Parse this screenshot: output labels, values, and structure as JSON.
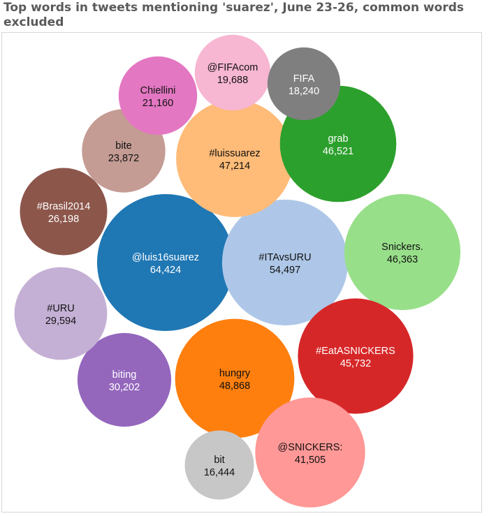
{
  "title": "Top words in tweets mentioning 'suarez', June 23-26, common words excluded",
  "chart_data": {
    "type": "bubble",
    "title": "Top words in tweets mentioning 'suarez', June 23-26, common words excluded",
    "points": [
      {
        "label": "@luis16suarez",
        "value": 64424,
        "display": "64,424",
        "color": "#1f77b4",
        "text_color": "#ffffff"
      },
      {
        "label": "#ITAvsURU",
        "value": 54497,
        "display": "54,497",
        "color": "#aec7e8",
        "text_color": "#111111"
      },
      {
        "label": "hungry",
        "value": 48868,
        "display": "48,868",
        "color": "#ff7f0e",
        "text_color": "#111111"
      },
      {
        "label": "#luissuarez",
        "value": 47214,
        "display": "47,214",
        "color": "#ffbb78",
        "text_color": "#111111"
      },
      {
        "label": "grab",
        "value": 46521,
        "display": "46,521",
        "color": "#2ca02c",
        "text_color": "#ffffff"
      },
      {
        "label": "Snickers.",
        "value": 46363,
        "display": "46,363",
        "color": "#98df8a",
        "text_color": "#111111"
      },
      {
        "label": "#EatASNICKERS",
        "value": 45732,
        "display": "45,732",
        "color": "#d62728",
        "text_color": "#ffffff"
      },
      {
        "label": "@SNICKERS:",
        "value": 41505,
        "display": "41,505",
        "color": "#ff9896",
        "text_color": "#111111"
      },
      {
        "label": "biting",
        "value": 30202,
        "display": "30,202",
        "color": "#9467bd",
        "text_color": "#ffffff"
      },
      {
        "label": "#URU",
        "value": 29594,
        "display": "29,594",
        "color": "#c5b0d5",
        "text_color": "#111111"
      },
      {
        "label": "#Brasil2014",
        "value": 26198,
        "display": "26,198",
        "color": "#8c564b",
        "text_color": "#ffffff"
      },
      {
        "label": "bite",
        "value": 23872,
        "display": "23,872",
        "color": "#c49c94",
        "text_color": "#111111"
      },
      {
        "label": "Chiellini",
        "value": 21160,
        "display": "21,160",
        "color": "#e377c2",
        "text_color": "#111111"
      },
      {
        "label": "@FIFAcom",
        "value": 19688,
        "display": "19,688",
        "color": "#f7b6d2",
        "text_color": "#111111"
      },
      {
        "label": "FIFA",
        "value": 18240,
        "display": "18,240",
        "color": "#7f7f7f",
        "text_color": "#ffffff"
      },
      {
        "label": "bit",
        "value": 16444,
        "display": "16,444",
        "color": "#c7c7c7",
        "text_color": "#111111"
      }
    ]
  }
}
